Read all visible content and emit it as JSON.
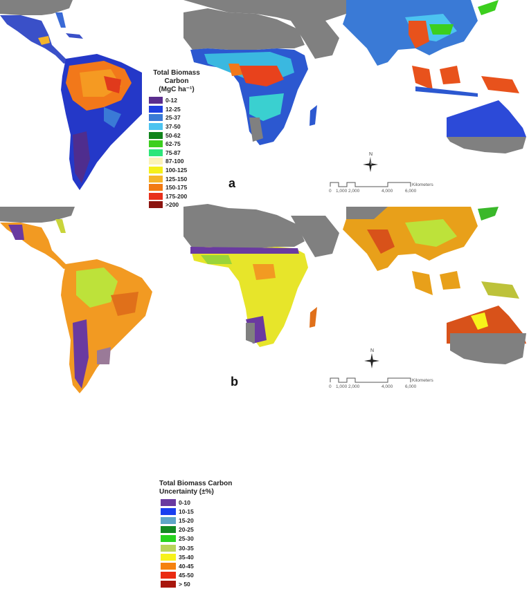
{
  "figure": {
    "panels": [
      {
        "id": "a",
        "label": "a",
        "legend": {
          "title_line1": "Total Biomass Carbon",
          "title_line2": "(MgC ha⁻¹)",
          "classes": [
            {
              "label": "0-12",
              "color": "#5b2d8e"
            },
            {
              "label": "12-25",
              "color": "#1f3fe0"
            },
            {
              "label": "25-37",
              "color": "#3a7ad6"
            },
            {
              "label": "37-50",
              "color": "#4cc3f0"
            },
            {
              "label": "50-62",
              "color": "#11841c"
            },
            {
              "label": "62-75",
              "color": "#3ccf1e"
            },
            {
              "label": "75-87",
              "color": "#2de67a"
            },
            {
              "label": "87-100",
              "color": "#fbf3b8"
            },
            {
              "label": "100-125",
              "color": "#f5f01a"
            },
            {
              "label": "125-150",
              "color": "#f5b52a"
            },
            {
              "label": "150-175",
              "color": "#f27a12"
            },
            {
              "label": "175-200",
              "color": "#e8301c"
            },
            {
              "label": ">200",
              "color": "#8c1410"
            }
          ]
        }
      },
      {
        "id": "b",
        "label": "b",
        "legend": {
          "title_line1": "Total Biomass Carbon",
          "title_line2": "Uncertainty (±%)",
          "classes": [
            {
              "label": "0-10",
              "color": "#6a3aa0"
            },
            {
              "label": "10-15",
              "color": "#1a3ff0"
            },
            {
              "label": "15-20",
              "color": "#5fa6c8"
            },
            {
              "label": "20-25",
              "color": "#138a22"
            },
            {
              "label": "25-30",
              "color": "#27d41f"
            },
            {
              "label": "30-35",
              "color": "#b9d45a"
            },
            {
              "label": "35-40",
              "color": "#f7f21a"
            },
            {
              "label": "40-45",
              "color": "#f5820f"
            },
            {
              "label": "45-50",
              "color": "#ea2b12"
            },
            {
              "label": "> 50",
              "color": "#a8170d"
            }
          ]
        }
      }
    ],
    "north_arrow": "N",
    "scale_bar": {
      "ticks": [
        "0",
        "1,000",
        "2,000",
        "4,000",
        "6,000"
      ],
      "unit": "Kilometers"
    },
    "colors": {
      "nodata_land": "#808080",
      "background": "#ffffff"
    }
  }
}
